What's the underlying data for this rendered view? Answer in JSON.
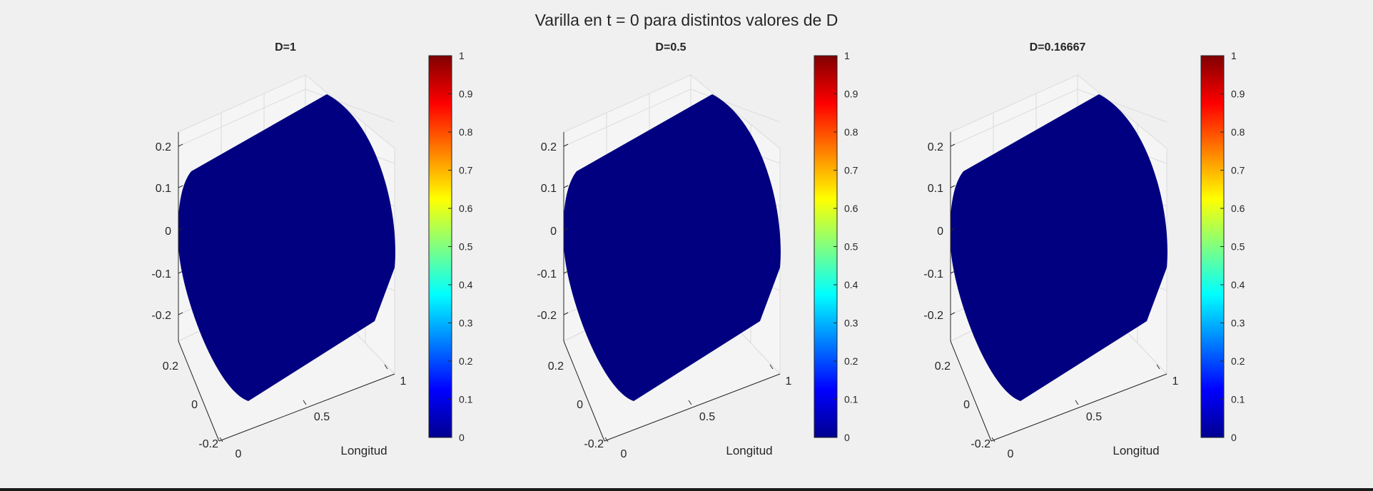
{
  "figure_title": "Varilla en t = 0 para distintos valores de D",
  "colors": {
    "surface": "#000080",
    "background": "#f0f0f0",
    "grid": "#dcdcdc",
    "axis": "#262626"
  },
  "chart_data": [
    {
      "type": "surface",
      "title": "D=1",
      "xlabel": "Longitud",
      "ylabel": "",
      "zlabel": "",
      "x_ticks": [
        "0",
        "0.5",
        "1"
      ],
      "y_ticks": [
        "0.2",
        "0",
        "-0.2"
      ],
      "z_ticks": [
        "0.2",
        "0.1",
        "0",
        "-0.1",
        "-0.2"
      ],
      "xlim": [
        0,
        1
      ],
      "ylim": [
        -0.25,
        0.25
      ],
      "zlim": [
        -0.25,
        0.25
      ],
      "value_at_t0": 0,
      "colorbar": {
        "colormap": "jet",
        "range": [
          0,
          1
        ],
        "ticks": [
          "0",
          "0.1",
          "0.2",
          "0.3",
          "0.4",
          "0.5",
          "0.6",
          "0.7",
          "0.8",
          "0.9",
          "1"
        ]
      },
      "grid": true
    },
    {
      "type": "surface",
      "title": "D=0.5",
      "xlabel": "Longitud",
      "ylabel": "",
      "zlabel": "",
      "x_ticks": [
        "0",
        "0.5",
        "1"
      ],
      "y_ticks": [
        "0.2",
        "0",
        "-0.2"
      ],
      "z_ticks": [
        "0.2",
        "0.1",
        "0",
        "-0.1",
        "-0.2"
      ],
      "xlim": [
        0,
        1
      ],
      "ylim": [
        -0.25,
        0.25
      ],
      "zlim": [
        -0.25,
        0.25
      ],
      "value_at_t0": 0,
      "colorbar": {
        "colormap": "jet",
        "range": [
          0,
          1
        ],
        "ticks": [
          "0",
          "0.1",
          "0.2",
          "0.3",
          "0.4",
          "0.5",
          "0.6",
          "0.7",
          "0.8",
          "0.9",
          "1"
        ]
      },
      "grid": true
    },
    {
      "type": "surface",
      "title": "D=0.16667",
      "xlabel": "Longitud",
      "ylabel": "",
      "zlabel": "",
      "x_ticks": [
        "0",
        "0.5",
        "1"
      ],
      "y_ticks": [
        "0.2",
        "0",
        "-0.2"
      ],
      "z_ticks": [
        "0.2",
        "0.1",
        "0",
        "-0.1",
        "-0.2"
      ],
      "xlim": [
        0,
        1
      ],
      "ylim": [
        -0.25,
        0.25
      ],
      "zlim": [
        -0.25,
        0.25
      ],
      "value_at_t0": 0,
      "colorbar": {
        "colormap": "jet",
        "range": [
          0,
          1
        ],
        "ticks": [
          "0",
          "0.1",
          "0.2",
          "0.3",
          "0.4",
          "0.5",
          "0.6",
          "0.7",
          "0.8",
          "0.9",
          "1"
        ]
      },
      "grid": true
    }
  ]
}
